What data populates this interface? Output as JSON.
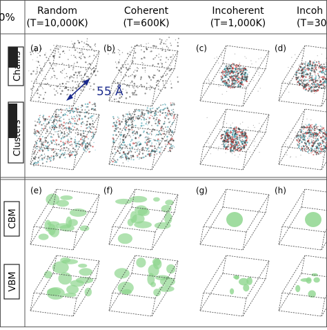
{
  "corner_label": "0%",
  "columns": [
    {
      "name": "Random",
      "temp": "(T=10,000K)"
    },
    {
      "name": "Coherent",
      "temp": "(T=600K)"
    },
    {
      "name": "Incoherent",
      "temp": "(T=1,000K)"
    },
    {
      "name": "Incoh",
      "temp": "(T=30"
    }
  ],
  "panel_letters": [
    "(a)",
    "(b)",
    "(c)",
    "(d)",
    "(e)",
    "(f)",
    "(g)",
    "(h)"
  ],
  "scale_label": "55 Å",
  "row_labels": {
    "chains_line1": "",
    "chains_line2": "Chains",
    "clusters_line1": "",
    "clusters_line2": "Clusters",
    "cbm": "CBM",
    "vbm": "VBM"
  },
  "colors": {
    "grid": "#555555",
    "scale_arrow": "#1a2a8c",
    "cloud_red": "#c83a3a",
    "cloud_cyan": "#3a9aa8",
    "density_green": "#8fd68f",
    "speckle": "#333333"
  }
}
